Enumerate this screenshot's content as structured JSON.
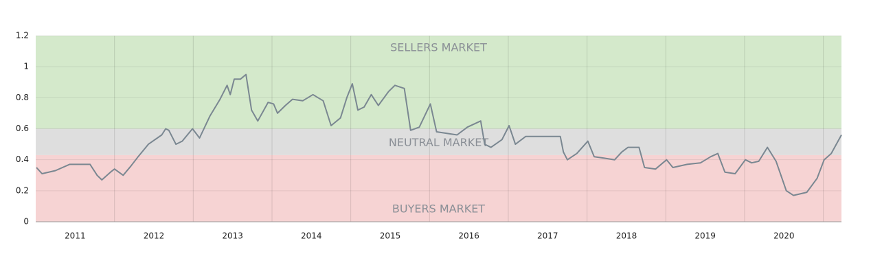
{
  "chart_data": {
    "type": "line",
    "bands": [
      {
        "label": "SELLERS MARKET",
        "from": 0.6,
        "to": 1.2,
        "color": "#d4e9cb"
      },
      {
        "label": "NEUTRAL MARKET",
        "from": 0.43,
        "to": 0.6,
        "color": "#dedede"
      },
      {
        "label": "BUYERS MARKET",
        "from": 0,
        "to": 0.43,
        "color": "#f6d3d3"
      }
    ],
    "x": [
      2011.01,
      2011.08,
      2011.25,
      2011.43,
      2011.6,
      2011.69,
      2011.78,
      2011.84,
      2011.95,
      2012.0,
      2012.11,
      2012.21,
      2012.3,
      2012.43,
      2012.6,
      2012.65,
      2012.69,
      2012.78,
      2012.86,
      2012.99,
      2013.08,
      2013.21,
      2013.34,
      2013.43,
      2013.47,
      2013.52,
      2013.6,
      2013.67,
      2013.74,
      2013.82,
      2013.95,
      2014.02,
      2014.07,
      2014.17,
      2014.26,
      2014.39,
      2014.52,
      2014.65,
      2014.75,
      2014.87,
      2014.95,
      2015.02,
      2015.09,
      2015.17,
      2015.26,
      2015.35,
      2015.48,
      2015.56,
      2015.68,
      2015.76,
      2015.87,
      2016.01,
      2016.09,
      2016.22,
      2016.35,
      2016.48,
      2016.65,
      2016.7,
      2016.78,
      2016.92,
      2017.01,
      2017.09,
      2017.22,
      2017.44,
      2017.66,
      2017.7,
      2017.75,
      2017.87,
      2018.01,
      2018.09,
      2018.22,
      2018.35,
      2018.44,
      2018.52,
      2018.66,
      2018.73,
      2018.87,
      2019.01,
      2019.09,
      2019.27,
      2019.44,
      2019.57,
      2019.66,
      2019.75,
      2019.88,
      2020.01,
      2020.09,
      2020.18,
      2020.29,
      2020.4,
      2020.53,
      2020.62,
      2020.79,
      2020.92,
      2021.01,
      2021.1,
      2021.23
    ],
    "series": [
      {
        "color": "#7a8791",
        "values": [
          0.35,
          0.31,
          0.33,
          0.37,
          0.37,
          0.37,
          0.3,
          0.27,
          0.32,
          0.34,
          0.3,
          0.36,
          0.42,
          0.5,
          0.56,
          0.6,
          0.59,
          0.5,
          0.52,
          0.6,
          0.54,
          0.68,
          0.79,
          0.88,
          0.82,
          0.92,
          0.92,
          0.95,
          0.72,
          0.65,
          0.77,
          0.76,
          0.7,
          0.75,
          0.79,
          0.78,
          0.82,
          0.78,
          0.62,
          0.67,
          0.8,
          0.89,
          0.72,
          0.74,
          0.82,
          0.75,
          0.84,
          0.88,
          0.86,
          0.59,
          0.61,
          0.76,
          0.58,
          0.57,
          0.56,
          0.61,
          0.65,
          0.5,
          0.48,
          0.53,
          0.62,
          0.5,
          0.55,
          0.55,
          0.55,
          0.45,
          0.4,
          0.44,
          0.52,
          0.42,
          0.41,
          0.4,
          0.45,
          0.48,
          0.48,
          0.35,
          0.34,
          0.4,
          0.35,
          0.37,
          0.38,
          0.42,
          0.44,
          0.32,
          0.31,
          0.4,
          0.38,
          0.39,
          0.48,
          0.39,
          0.2,
          0.17,
          0.19,
          0.28,
          0.4,
          0.44,
          0.56
        ]
      }
    ],
    "xlim": [
      2011,
      2021.23
    ],
    "xticks": [
      2011,
      2012,
      2013,
      2014,
      2015,
      2016,
      2017,
      2018,
      2019,
      2020
    ],
    "ylim": [
      0,
      1.2
    ],
    "yticks": [
      0,
      0.2,
      0.4,
      0.6,
      0.8,
      1,
      1.2
    ],
    "grid": true
  }
}
